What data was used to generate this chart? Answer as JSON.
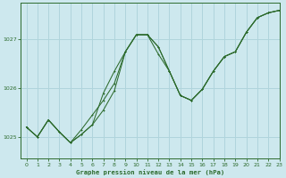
{
  "title": "Graphe pression niveau de la mer (hPa)",
  "bg_color": "#cde8ee",
  "grid_color": "#b0d4dc",
  "line_color": "#2d6b2d",
  "marker_color": "#2d6b2d",
  "xlim": [
    -0.5,
    23
  ],
  "ylim": [
    1024.55,
    1027.75
  ],
  "yticks": [
    1025,
    1026,
    1027
  ],
  "xticks": [
    0,
    1,
    2,
    3,
    4,
    5,
    6,
    7,
    8,
    9,
    10,
    11,
    12,
    13,
    14,
    15,
    16,
    17,
    18,
    19,
    20,
    21,
    22,
    23
  ],
  "series1_x": [
    0,
    1,
    2,
    3,
    4,
    5,
    6,
    7,
    8,
    9,
    10,
    11,
    12,
    13,
    14,
    15,
    16,
    17,
    18,
    19,
    20,
    21,
    22,
    23
  ],
  "series1_y": [
    1025.2,
    1025.0,
    1025.35,
    1025.1,
    1024.88,
    1025.05,
    1025.25,
    1025.55,
    1025.95,
    1026.75,
    1027.1,
    1027.1,
    1026.85,
    1026.35,
    1025.85,
    1025.75,
    1025.98,
    1026.35,
    1026.65,
    1026.75,
    1027.15,
    1027.45,
    1027.55,
    1027.6
  ],
  "series2_x": [
    0,
    1,
    2,
    3,
    4,
    5,
    6,
    7,
    8,
    9,
    10,
    11,
    12,
    13,
    14,
    15,
    16,
    17,
    18,
    19,
    20,
    21,
    22,
    23
  ],
  "series2_y": [
    1025.2,
    1025.0,
    1025.35,
    1025.1,
    1024.88,
    1025.05,
    1025.25,
    1025.9,
    1026.35,
    1026.75,
    1027.1,
    1027.1,
    1026.7,
    1026.35,
    1025.85,
    1025.75,
    1025.98,
    1026.35,
    1026.65,
    1026.75,
    1027.15,
    1027.45,
    1027.55,
    1027.6
  ],
  "series3_x": [
    0,
    1,
    2,
    3,
    4,
    5,
    6,
    7,
    8,
    9,
    10,
    11,
    12,
    13,
    14,
    15,
    16,
    17,
    18,
    19,
    20,
    21,
    22,
    23
  ],
  "series3_y": [
    1025.2,
    1025.0,
    1025.35,
    1025.1,
    1024.88,
    1025.15,
    1025.45,
    1025.75,
    1026.1,
    1026.75,
    1027.1,
    1027.1,
    1026.85,
    1026.35,
    1025.85,
    1025.75,
    1025.98,
    1026.35,
    1026.65,
    1026.75,
    1027.15,
    1027.45,
    1027.55,
    1027.6
  ]
}
